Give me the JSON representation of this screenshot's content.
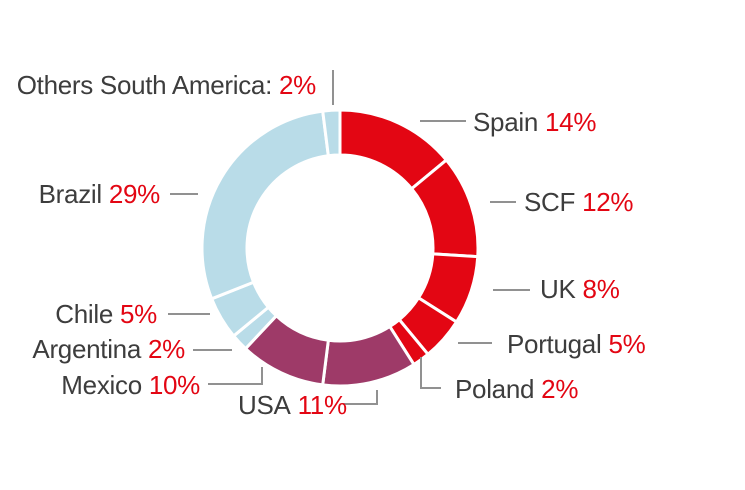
{
  "chart_data": {
    "type": "pie",
    "subtype": "donut",
    "title": "",
    "unit": "%",
    "direction": "clockwise",
    "start_angle_deg": 0,
    "legend_position": "callout-labels",
    "categories": [
      "Spain",
      "SCF",
      "UK",
      "Portugal",
      "Poland",
      "USA",
      "Mexico",
      "Argentina",
      "Chile",
      "Brazil",
      "Others South America"
    ],
    "values": [
      14,
      12,
      8,
      5,
      2,
      11,
      10,
      2,
      5,
      29,
      2
    ],
    "slices": [
      {
        "name": "Spain",
        "value": 14,
        "display_label": "Spain",
        "percent_label": "14%",
        "color_key": "red"
      },
      {
        "name": "SCF",
        "value": 12,
        "display_label": "SCF",
        "percent_label": "12%",
        "color_key": "red"
      },
      {
        "name": "UK",
        "value": 8,
        "display_label": "UK",
        "percent_label": "8%",
        "color_key": "red"
      },
      {
        "name": "Portugal",
        "value": 5,
        "display_label": "Portugal",
        "percent_label": "5%",
        "color_key": "red"
      },
      {
        "name": "Poland",
        "value": 2,
        "display_label": "Poland",
        "percent_label": "2%",
        "color_key": "red"
      },
      {
        "name": "USA",
        "value": 11,
        "display_label": "USA",
        "percent_label": "11%",
        "color_key": "maroon"
      },
      {
        "name": "Mexico",
        "value": 10,
        "display_label": "Mexico",
        "percent_label": "10%",
        "color_key": "maroon"
      },
      {
        "name": "Argentina",
        "value": 2,
        "display_label": "Argentina",
        "percent_label": "2%",
        "color_key": "lightblue"
      },
      {
        "name": "Chile",
        "value": 5,
        "display_label": "Chile",
        "percent_label": "5%",
        "color_key": "lightblue"
      },
      {
        "name": "Brazil",
        "value": 29,
        "display_label": "Brazil",
        "percent_label": "29%",
        "color_key": "lightblue"
      },
      {
        "name": "Others South America",
        "value": 2,
        "display_label": "Others South America:",
        "percent_label": "2%",
        "color_key": "lightblue"
      }
    ],
    "colors": {
      "red": "#e30613",
      "maroon": "#9e3a68",
      "lightblue": "#b9dce8"
    },
    "label_text_color": "#3d3d3d",
    "percent_text_color": "#e30613",
    "leader_line_color": "#919191",
    "segment_gap_color": "#ffffff"
  }
}
